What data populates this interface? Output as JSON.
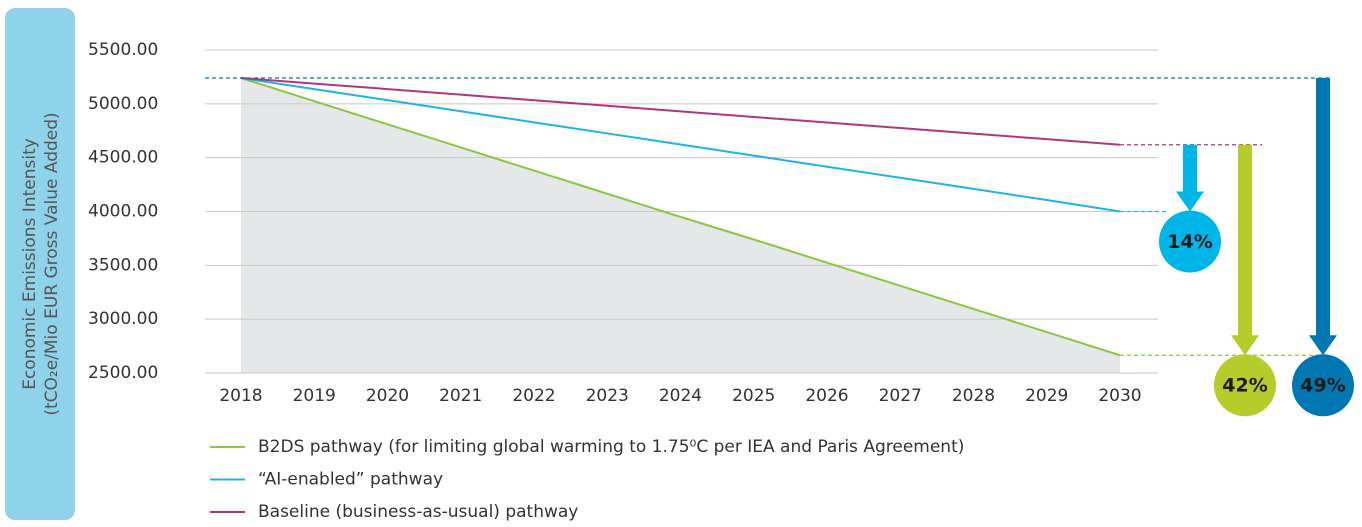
{
  "chart_data": {
    "type": "line",
    "y_label_lines": [
      "Economic Emissions Intensity",
      "(tCO₂e/Mio EUR Gross Value Added)"
    ],
    "categories": [
      "2018",
      "2019",
      "2020",
      "2021",
      "2022",
      "2023",
      "2024",
      "2025",
      "2026",
      "2027",
      "2028",
      "2029",
      "2030"
    ],
    "series": [
      {
        "name": "B2DS pathway (for limiting global warming to 1.75⁰C per IEA and Paris Agreement)",
        "color": "#8dc63f",
        "values": [
          5240,
          5025,
          4810,
          4595,
          4380,
          4165,
          3950,
          3740,
          3525,
          3310,
          3095,
          2880,
          2665
        ]
      },
      {
        "name": "“AI-enabled” pathway",
        "color": "#1eb4e6",
        "values": [
          5240,
          5137,
          5034,
          4931,
          4828,
          4725,
          4622,
          4519,
          4416,
          4313,
          4210,
          4107,
          4000
        ]
      },
      {
        "name": "Baseline (business-as-usual) pathway",
        "color": "#b5357c",
        "values": [
          5240,
          5188,
          5137,
          5085,
          5033,
          4982,
          4930,
          4878,
          4827,
          4775,
          4723,
          4672,
          4620
        ]
      }
    ],
    "area_color": "#e6e7e9",
    "ylim": [
      2500,
      5500
    ],
    "yticks": [
      {
        "value": 2500,
        "label": "2500.00"
      },
      {
        "value": 3000,
        "label": "3000.00"
      },
      {
        "value": 3500,
        "label": "3500.00"
      },
      {
        "value": 4000,
        "label": "4000.00"
      },
      {
        "value": 4500,
        "label": "4500.00"
      },
      {
        "value": 5000,
        "label": "5000.00"
      },
      {
        "value": 5500,
        "label": "5500.00"
      }
    ],
    "grid": true,
    "annotations": [
      {
        "text": "14%",
        "color": "#00b6e8"
      },
      {
        "text": "42%",
        "color": "#b5cc2a"
      },
      {
        "text": "49%",
        "color": "#0077b0"
      }
    ]
  }
}
